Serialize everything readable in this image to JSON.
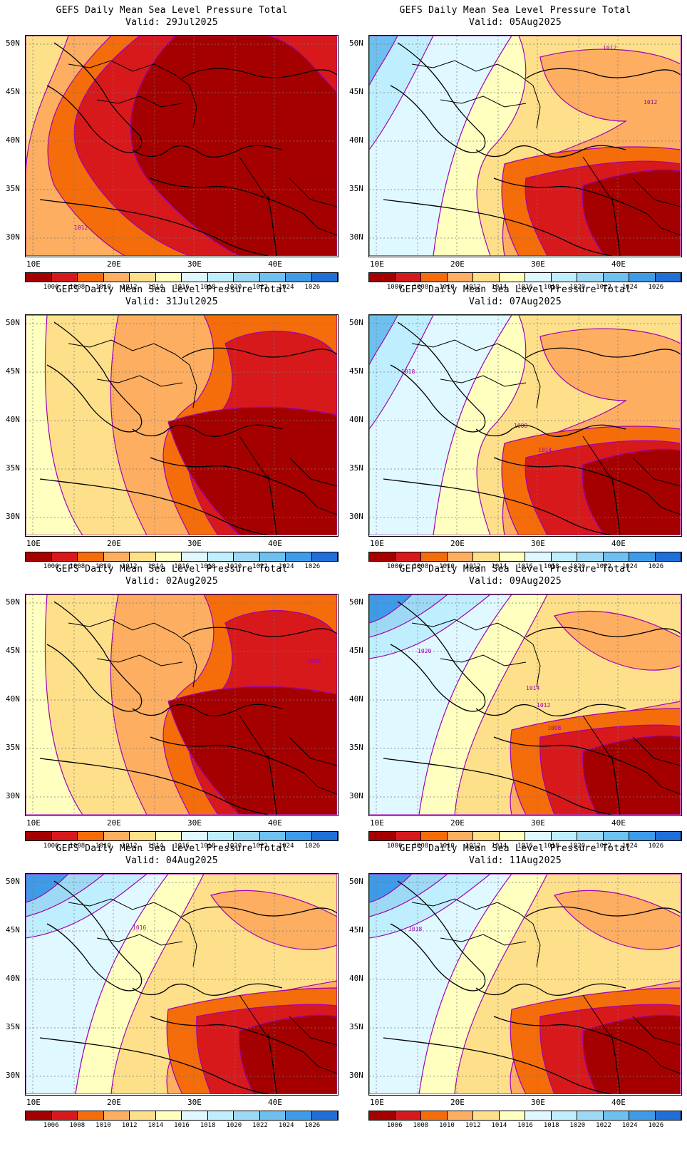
{
  "title_line": "GEFS Daily Mean Sea Level Pressure Total",
  "valid_prefix": "Valid:",
  "lat_labels": [
    "50N",
    "45N",
    "40N",
    "35N",
    "30N"
  ],
  "lon_labels": [
    "10E",
    "20E",
    "30E",
    "40E"
  ],
  "colorbar": {
    "colors": [
      "#a50000",
      "#d7191c",
      "#f46d0a",
      "#fdae61",
      "#fee08b",
      "#ffffbf",
      "#e0f8ff",
      "#bfefff",
      "#9dd9f5",
      "#6ec0ef",
      "#3f9ae8",
      "#1f6fd6"
    ],
    "labels": [
      "1006",
      "1008",
      "1010",
      "1012",
      "1014",
      "1016",
      "1018",
      "1020",
      "1022",
      "1024",
      "1026"
    ]
  },
  "panels": [
    {
      "valid": "29Jul2025",
      "col": 0,
      "row": 0,
      "labels": [
        {
          "text": "1012"
        }
      ],
      "scheme": "hot"
    },
    {
      "valid": "05Aug2025",
      "col": 1,
      "row": 0,
      "labels": [
        {
          "text": "1012"
        },
        {
          "text": "1012"
        }
      ],
      "scheme": "cool-west"
    },
    {
      "valid": "31Jul2025",
      "col": 0,
      "row": 1,
      "labels": [],
      "scheme": "warm"
    },
    {
      "valid": "07Aug2025",
      "col": 1,
      "row": 1,
      "labels": [
        {
          "text": "1018"
        },
        {
          "text": "1008"
        },
        {
          "text": "1014"
        }
      ],
      "scheme": "cool-west"
    },
    {
      "valid": "02Aug2025",
      "col": 0,
      "row": 2,
      "labels": [
        {
          "text": "1008"
        }
      ],
      "scheme": "warm"
    },
    {
      "valid": "09Aug2025",
      "col": 1,
      "row": 2,
      "labels": [
        {
          "text": "1020"
        },
        {
          "text": "1014"
        },
        {
          "text": "1012"
        },
        {
          "text": "1008"
        }
      ],
      "scheme": "cool"
    },
    {
      "valid": "04Aug2025",
      "col": 0,
      "row": 3,
      "labels": [
        {
          "text": "1016"
        }
      ],
      "scheme": "cool"
    },
    {
      "valid": "11Aug2025",
      "col": 1,
      "row": 3,
      "labels": [
        {
          "text": "1018"
        }
      ],
      "scheme": "cool"
    }
  ]
}
